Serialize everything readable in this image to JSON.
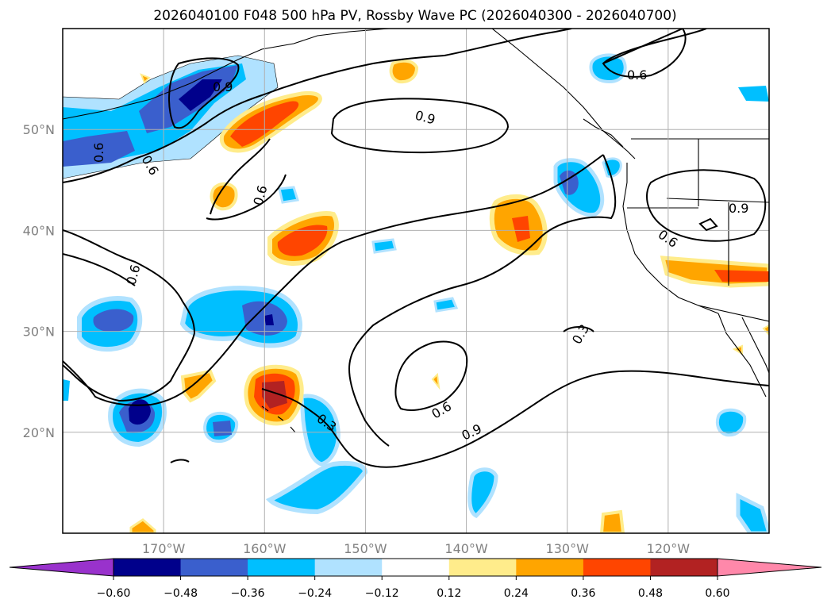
{
  "title": "2026040100 F048 500 hPa PV, Rossby Wave PC (2026040300 - 2026040700)",
  "map": {
    "lon_range": [
      -180,
      -110
    ],
    "lat_range": [
      10,
      60
    ],
    "lon_ticks": [
      {
        "value": -170,
        "label": "170°W"
      },
      {
        "value": -160,
        "label": "160°W"
      },
      {
        "value": -150,
        "label": "150°W"
      },
      {
        "value": -140,
        "label": "140°W"
      },
      {
        "value": -130,
        "label": "130°W"
      },
      {
        "value": -120,
        "label": "120°W"
      }
    ],
    "lat_ticks": [
      {
        "value": 20,
        "label": "20°N"
      },
      {
        "value": 30,
        "label": "30°N"
      },
      {
        "value": 40,
        "label": "40°N"
      },
      {
        "value": 50,
        "label": "50°N"
      }
    ]
  },
  "contour_labels": [
    "0.9",
    "0.9",
    "0.9",
    "0.6",
    "0.6",
    "0.6",
    "0.6",
    "0.6",
    "0.6",
    "0.6",
    "0.3",
    "0.3",
    "0.9"
  ],
  "colorbar": {
    "levels": [
      "−0.60",
      "−0.48",
      "−0.36",
      "−0.24",
      "−0.12",
      "0.12",
      "0.24",
      "0.36",
      "0.48",
      "0.60"
    ],
    "colors": {
      "under": "#9932cc",
      "bins": [
        "#00008b",
        "#3a5fcd",
        "#00bfff",
        "#b0e2ff",
        "#ffffff",
        "#ffec8b",
        "#ffa500",
        "#ff4500",
        "#b22222"
      ],
      "over": "#ff88aa"
    }
  },
  "colors": {
    "neg_strong": "#00008b",
    "neg_mid": "#3a5fcd",
    "neg": "#00bfff",
    "neg_light": "#b0e2ff",
    "pos_light": "#ffec8b",
    "pos": "#ffa500",
    "pos_mid": "#ff4500",
    "pos_strong": "#b22222",
    "grid": "#b0b0b0"
  }
}
